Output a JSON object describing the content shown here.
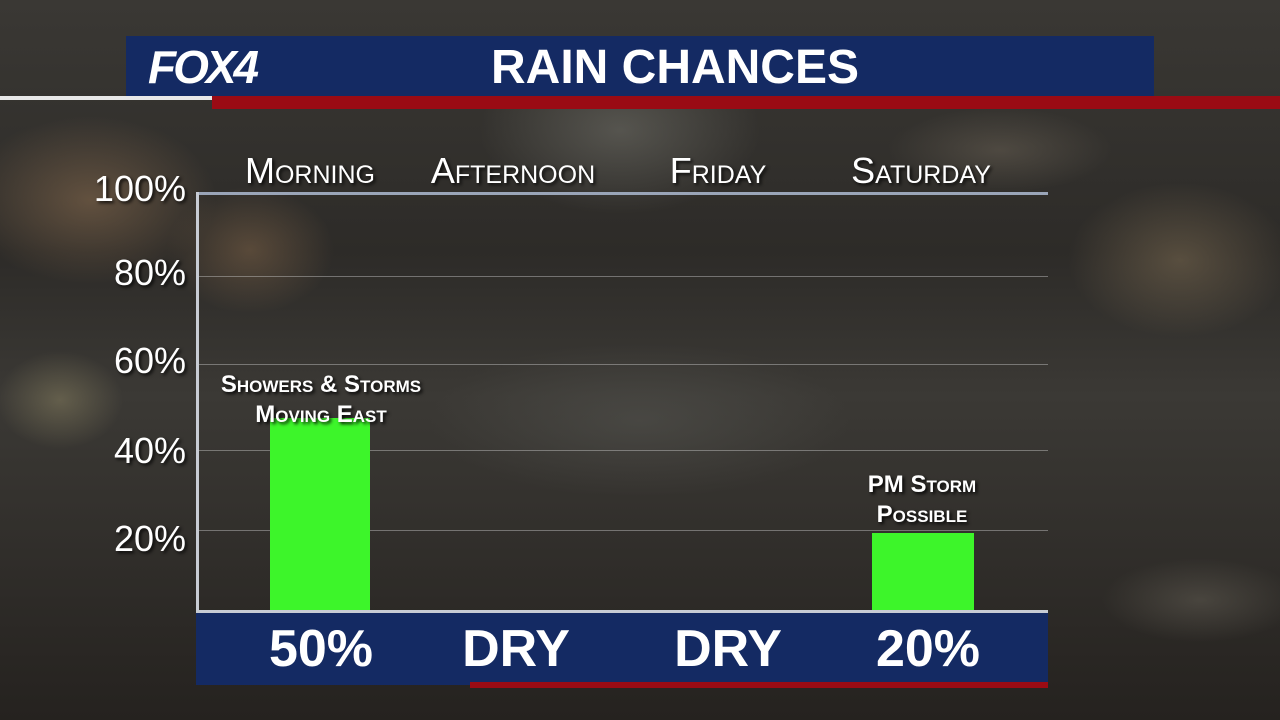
{
  "header": {
    "logo": "FOX4",
    "title": "RAIN CHANCES"
  },
  "chart_data": {
    "type": "bar",
    "categories": [
      "Morning",
      "Afternoon",
      "Friday",
      "Saturday"
    ],
    "values": [
      50,
      0,
      0,
      20
    ],
    "value_labels": [
      "50%",
      "DRY",
      "DRY",
      "20%"
    ],
    "ylim": [
      0,
      100
    ],
    "yticks": [
      "20%",
      "40%",
      "60%",
      "80%",
      "100%"
    ],
    "annotations": [
      {
        "category": "Morning",
        "lines": [
          "Showers & Storms",
          "Moving East"
        ]
      },
      {
        "category": "Saturday",
        "lines": [
          "PM Storm",
          "Possible"
        ]
      }
    ],
    "bar_color": "#3df52a",
    "grid": true
  },
  "colors": {
    "header_blue": "#142a63",
    "accent_red": "#9a0b14"
  }
}
